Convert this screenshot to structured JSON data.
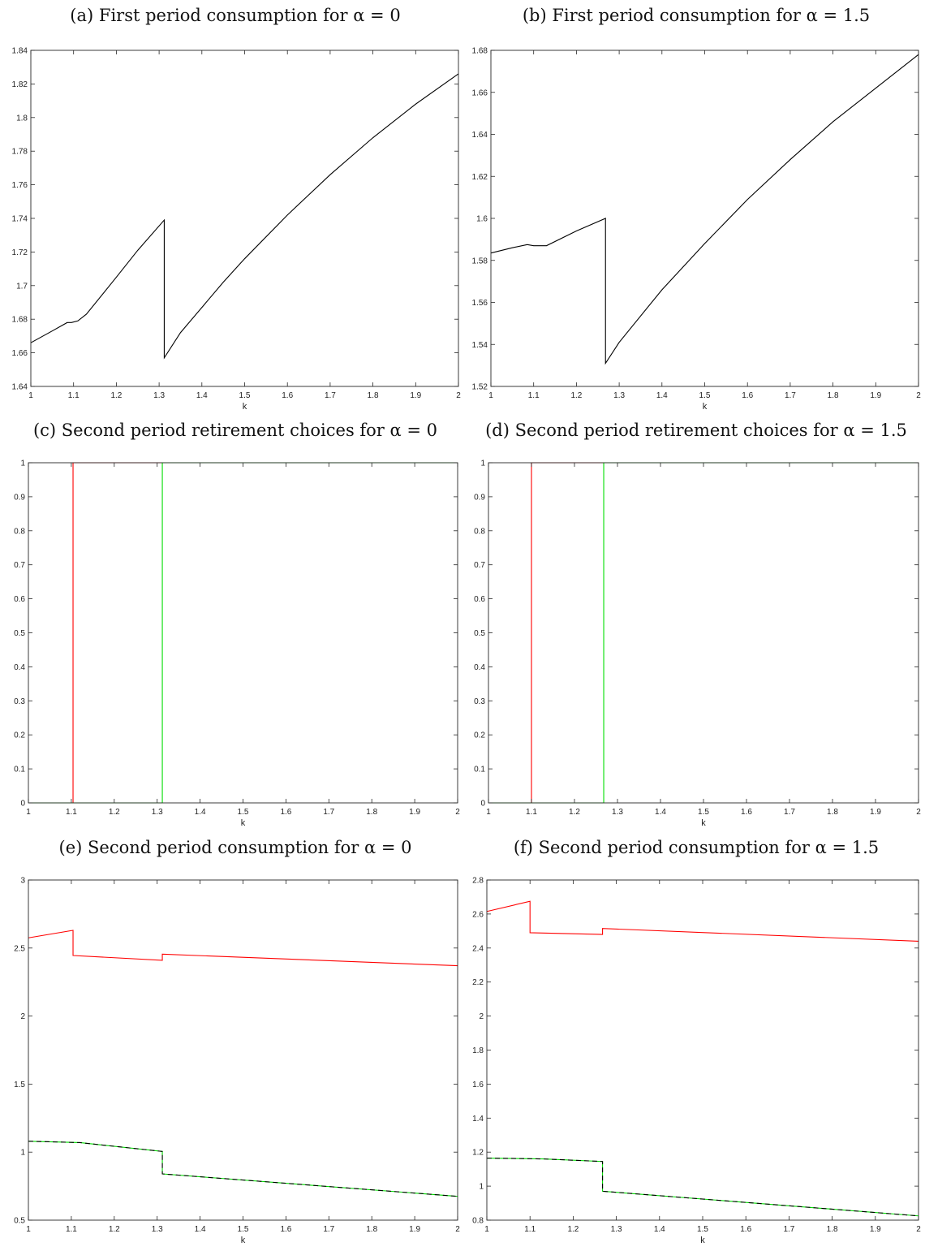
{
  "chart_data": [
    {
      "type": "line",
      "title": "(a) First period consumption for α = 0",
      "xlabel": "k",
      "ylabel": "",
      "xlim": [
        1,
        2
      ],
      "ylim": [
        1.64,
        1.84
      ],
      "xticks": [
        "1",
        "1.1",
        "1.2",
        "1.3",
        "1.4",
        "1.5",
        "1.6",
        "1.7",
        "1.8",
        "1.9",
        "2"
      ],
      "yticks": [
        "1.64",
        "1.66",
        "1.68",
        "1.7",
        "1.72",
        "1.74",
        "1.76",
        "1.78",
        "1.8",
        "1.82",
        "1.84"
      ],
      "series": [
        {
          "color": "#000000",
          "dashed": false,
          "x": [
            1.0,
            1.05,
            1.085,
            1.095,
            1.11,
            1.13,
            1.2,
            1.25,
            1.312,
            1.312,
            1.35,
            1.4,
            1.45,
            1.5,
            1.6,
            1.7,
            1.8,
            1.9,
            2.0
          ],
          "y": [
            1.666,
            1.673,
            1.678,
            1.678,
            1.679,
            1.683,
            1.705,
            1.721,
            1.739,
            1.657,
            1.672,
            1.687,
            1.702,
            1.716,
            1.742,
            1.766,
            1.788,
            1.808,
            1.826
          ]
        }
      ]
    },
    {
      "type": "line",
      "title": "(b) First period consumption for α = 1.5",
      "xlabel": "k",
      "ylabel": "",
      "xlim": [
        1,
        2
      ],
      "ylim": [
        1.52,
        1.68
      ],
      "xticks": [
        "1",
        "1.1",
        "1.2",
        "1.3",
        "1.4",
        "1.5",
        "1.6",
        "1.7",
        "1.8",
        "1.9",
        "2"
      ],
      "yticks": [
        "1.52",
        "1.54",
        "1.56",
        "1.58",
        "1.6",
        "1.62",
        "1.64",
        "1.66",
        "1.68"
      ],
      "series": [
        {
          "color": "#000000",
          "dashed": false,
          "x": [
            1.0,
            1.05,
            1.085,
            1.1,
            1.13,
            1.2,
            1.268,
            1.268,
            1.3,
            1.4,
            1.5,
            1.6,
            1.7,
            1.8,
            1.9,
            2.0
          ],
          "y": [
            1.5835,
            1.586,
            1.5875,
            1.587,
            1.587,
            1.594,
            1.6,
            1.531,
            1.541,
            1.566,
            1.588,
            1.609,
            1.628,
            1.646,
            1.662,
            1.678
          ]
        }
      ]
    },
    {
      "type": "line",
      "title": "(c) Second period retirement choices for α = 0",
      "xlabel": "k",
      "ylabel": "",
      "xlim": [
        1,
        2
      ],
      "ylim": [
        0,
        1
      ],
      "xticks": [
        "1",
        "1.1",
        "1.2",
        "1.3",
        "1.4",
        "1.5",
        "1.6",
        "1.7",
        "1.8",
        "1.9",
        "2"
      ],
      "yticks": [
        "0",
        "0.1",
        "0.2",
        "0.3",
        "0.4",
        "0.5",
        "0.6",
        "0.7",
        "0.8",
        "0.9",
        "1"
      ],
      "series": [
        {
          "color": "#ff0000",
          "dashed": false,
          "x": [
            1.0,
            1.104,
            1.104,
            2.0
          ],
          "y": [
            0,
            0,
            1,
            1
          ]
        },
        {
          "color": "#00dd00",
          "dashed": false,
          "x": [
            1.0,
            1.312,
            1.312,
            2.0
          ],
          "y": [
            0,
            0,
            1,
            1
          ]
        }
      ]
    },
    {
      "type": "line",
      "title": "(d) Second period retirement choices for α = 1.5",
      "xlabel": "k",
      "ylabel": "",
      "xlim": [
        1,
        2
      ],
      "ylim": [
        0,
        1
      ],
      "xticks": [
        "1",
        "1.1",
        "1.2",
        "1.3",
        "1.4",
        "1.5",
        "1.6",
        "1.7",
        "1.8",
        "1.9",
        "2"
      ],
      "yticks": [
        "0",
        "0.1",
        "0.2",
        "0.3",
        "0.4",
        "0.5",
        "0.6",
        "0.7",
        "0.8",
        "0.9",
        "1"
      ],
      "series": [
        {
          "color": "#ff0000",
          "dashed": false,
          "x": [
            1.0,
            1.1,
            1.1,
            2.0
          ],
          "y": [
            0,
            0,
            1,
            1
          ]
        },
        {
          "color": "#00dd00",
          "dashed": false,
          "x": [
            1.0,
            1.268,
            1.268,
            2.0
          ],
          "y": [
            0,
            0,
            1,
            1
          ]
        }
      ]
    },
    {
      "type": "line",
      "title": "(e) Second period consumption for α = 0",
      "xlabel": "k",
      "ylabel": "",
      "xlim": [
        1,
        2
      ],
      "ylim": [
        0.5,
        3
      ],
      "xticks": [
        "1",
        "1.1",
        "1.2",
        "1.3",
        "1.4",
        "1.5",
        "1.6",
        "1.7",
        "1.8",
        "1.9",
        "2"
      ],
      "yticks": [
        "0.5",
        "1",
        "1.5",
        "2",
        "2.5",
        "3"
      ],
      "series": [
        {
          "color": "#ff0000",
          "dashed": false,
          "x": [
            1.0,
            1.104,
            1.104,
            1.312,
            1.312,
            2.0
          ],
          "y": [
            2.575,
            2.63,
            2.445,
            2.41,
            2.455,
            2.37
          ]
        },
        {
          "color": "#00dd00",
          "dashed": false,
          "x": [
            1.0,
            1.12,
            1.312,
            1.312,
            2.0
          ],
          "y": [
            1.08,
            1.07,
            1.005,
            0.84,
            0.675
          ]
        },
        {
          "color": "#000000",
          "dashed": true,
          "x": [
            1.0,
            1.12,
            1.312,
            1.312,
            2.0
          ],
          "y": [
            1.08,
            1.07,
            1.005,
            0.84,
            0.675
          ]
        }
      ]
    },
    {
      "type": "line",
      "title": "(f) Second period consumption for α = 1.5",
      "xlabel": "k",
      "ylabel": "",
      "xlim": [
        1,
        2
      ],
      "ylim": [
        0.8,
        2.8
      ],
      "xticks": [
        "1",
        "1.1",
        "1.2",
        "1.3",
        "1.4",
        "1.5",
        "1.6",
        "1.7",
        "1.8",
        "1.9",
        "2"
      ],
      "yticks": [
        "0.8",
        "1",
        "1.2",
        "1.4",
        "1.6",
        "1.8",
        "2",
        "2.2",
        "2.4",
        "2.6",
        "2.8"
      ],
      "series": [
        {
          "color": "#ff0000",
          "dashed": false,
          "x": [
            1.0,
            1.1,
            1.1,
            1.268,
            1.268,
            2.0
          ],
          "y": [
            2.615,
            2.675,
            2.49,
            2.48,
            2.515,
            2.44
          ]
        },
        {
          "color": "#00dd00",
          "dashed": false,
          "x": [
            1.0,
            1.13,
            1.268,
            1.268,
            2.0
          ],
          "y": [
            1.165,
            1.16,
            1.145,
            0.97,
            0.825
          ]
        },
        {
          "color": "#000000",
          "dashed": true,
          "x": [
            1.0,
            1.13,
            1.268,
            1.268,
            2.0
          ],
          "y": [
            1.165,
            1.16,
            1.145,
            0.97,
            0.825
          ]
        }
      ]
    }
  ]
}
